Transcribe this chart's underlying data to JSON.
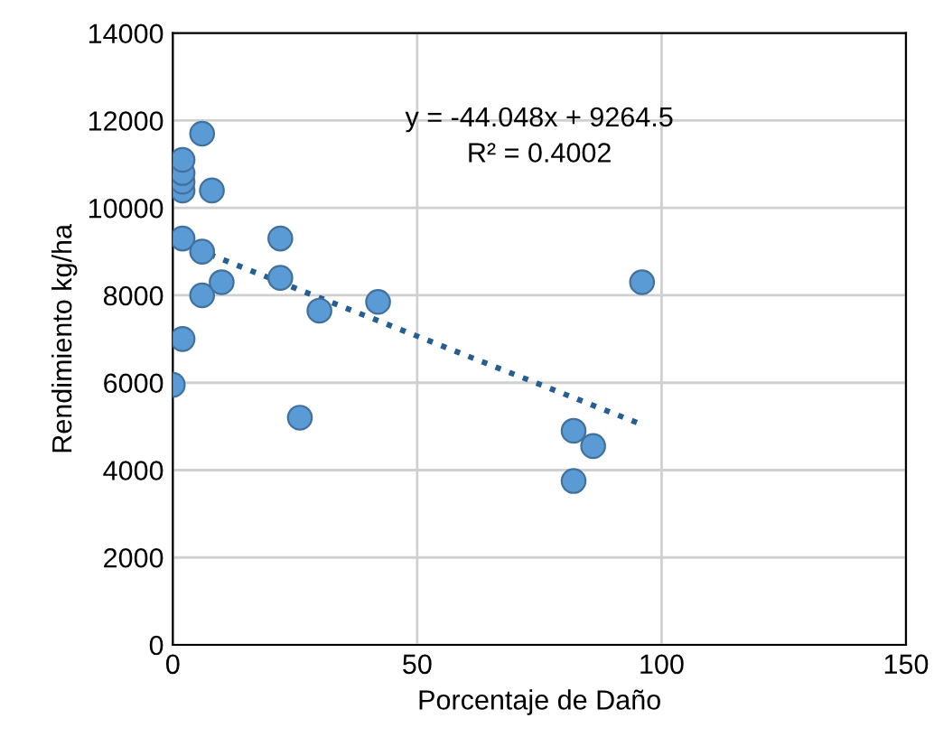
{
  "chart_data": {
    "type": "scatter",
    "xlabel": "Porcentaje de Daño",
    "ylabel": "Rendimiento kg/ha",
    "xlim": [
      0,
      150
    ],
    "xticks": [
      0,
      50,
      100,
      150
    ],
    "ylim": [
      0,
      14000
    ],
    "yticks": [
      0,
      2000,
      4000,
      6000,
      8000,
      10000,
      12000,
      14000
    ],
    "grid": true,
    "series": [
      {
        "marker": "circle",
        "color": "#5b9bd5",
        "x": [
          0,
          2,
          2,
          2,
          2,
          2,
          2,
          6,
          6,
          6,
          8,
          10,
          22,
          22,
          26,
          30,
          42,
          82,
          82,
          86,
          96
        ],
        "values": [
          5950,
          7000,
          9300,
          10400,
          10600,
          10800,
          11100,
          11700,
          9000,
          8000,
          10400,
          8300,
          9300,
          8400,
          5200,
          7650,
          7850,
          4900,
          3750,
          4550,
          8300
        ]
      },
      {
        "type": "line",
        "marker": "none",
        "color": "#255e91",
        "line_style": "dotted",
        "x": [
          2,
          96
        ],
        "values": [
          9180,
          5040
        ]
      }
    ],
    "annotations": [
      "y = -44.048x + 9264.5\nR² = 0.4002"
    ]
  }
}
